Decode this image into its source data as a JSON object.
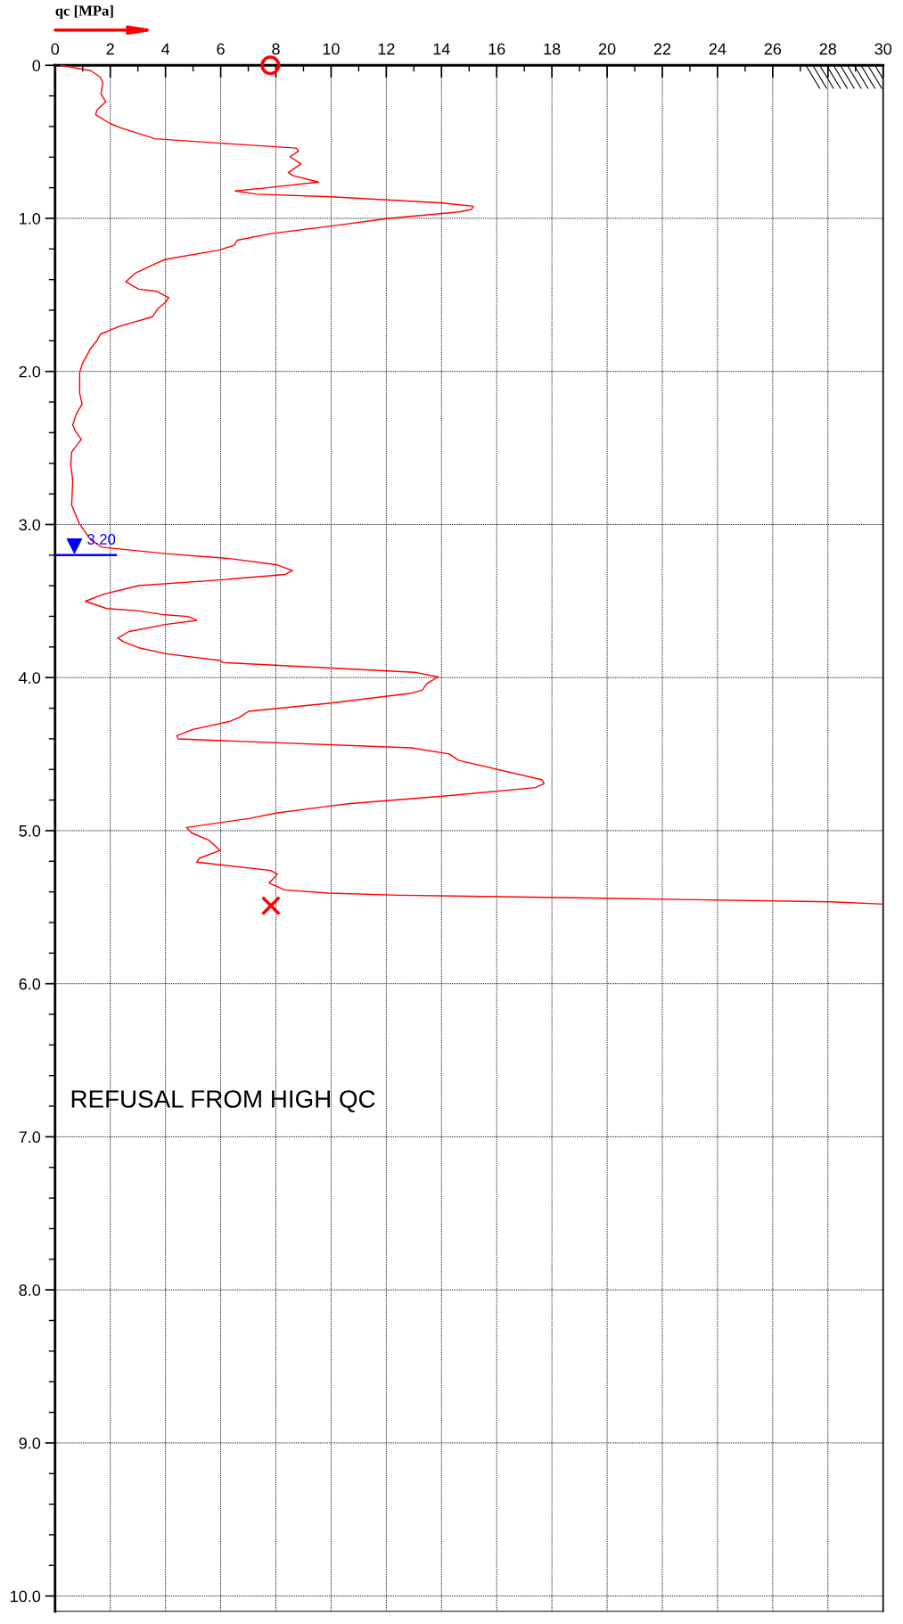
{
  "chart_data": {
    "type": "line",
    "xlabel": "qc [MPa]",
    "xlim": [
      0,
      30
    ],
    "ylim": [
      10.1,
      0
    ],
    "xticks": [
      0,
      {
        "value": 1,
        "label": null
      },
      2,
      {
        "value": 3,
        "label": null
      },
      4,
      {
        "value": 5,
        "label": null
      },
      6,
      {
        "value": 7,
        "label": null
      },
      8,
      {
        "value": 9,
        "label": null
      },
      10,
      {
        "value": 11,
        "label": null
      },
      12,
      {
        "value": 13,
        "label": null
      },
      14,
      {
        "value": 15,
        "label": null
      },
      16,
      {
        "value": 17,
        "label": null
      },
      18,
      {
        "value": 19,
        "label": null
      },
      20,
      {
        "value": 21,
        "label": null
      },
      22,
      {
        "value": 23,
        "label": null
      },
      24,
      {
        "value": 25,
        "label": null
      },
      26,
      {
        "value": 27,
        "label": null
      },
      28,
      {
        "value": 29,
        "label": null
      },
      30
    ],
    "yticks": [
      0,
      {
        "value": 0.2,
        "label": null
      },
      {
        "value": 0.4,
        "label": null
      },
      {
        "value": 0.6,
        "label": null
      },
      {
        "value": 0.8,
        "label": null
      },
      {
        "value": 1,
        "label": "1.0"
      },
      {
        "value": 1.2,
        "label": null
      },
      {
        "value": 1.4,
        "label": null
      },
      {
        "value": 1.6,
        "label": null
      },
      {
        "value": 1.8,
        "label": null
      },
      {
        "value": 2,
        "label": "2.0"
      },
      {
        "value": 2.2,
        "label": null
      },
      {
        "value": 2.4,
        "label": null
      },
      {
        "value": 2.6,
        "label": null
      },
      {
        "value": 2.8,
        "label": null
      },
      {
        "value": 3,
        "label": "3.0"
      },
      {
        "value": 3.2,
        "label": null
      },
      {
        "value": 3.4,
        "label": null
      },
      {
        "value": 3.6,
        "label": null
      },
      {
        "value": 3.8,
        "label": null
      },
      {
        "value": 4,
        "label": "4.0"
      },
      {
        "value": 4.2,
        "label": null
      },
      {
        "value": 4.4,
        "label": null
      },
      {
        "value": 4.6,
        "label": null
      },
      {
        "value": 4.8,
        "label": null
      },
      {
        "value": 5,
        "label": "5.0"
      },
      {
        "value": 5.2,
        "label": null
      },
      {
        "value": 5.4,
        "label": null
      },
      {
        "value": 5.6,
        "label": null
      },
      {
        "value": 5.8,
        "label": null
      },
      {
        "value": 6,
        "label": "6.0"
      },
      {
        "value": 6.2,
        "label": null
      },
      {
        "value": 6.4,
        "label": null
      },
      {
        "value": 6.6,
        "label": null
      },
      {
        "value": 6.8,
        "label": null
      },
      {
        "value": 7,
        "label": "7.0"
      },
      {
        "value": 7.2,
        "label": null
      },
      {
        "value": 7.4,
        "label": null
      },
      {
        "value": 7.6,
        "label": null
      },
      {
        "value": 7.8,
        "label": null
      },
      {
        "value": 8,
        "label": "8.0"
      },
      {
        "value": 8.2,
        "label": null
      },
      {
        "value": 8.4,
        "label": null
      },
      {
        "value": 8.6,
        "label": null
      },
      {
        "value": 8.8,
        "label": null
      },
      {
        "value": 9,
        "label": "9.0"
      },
      {
        "value": 9.2,
        "label": null
      },
      {
        "value": 9.4,
        "label": null
      },
      {
        "value": 9.6,
        "label": null
      },
      {
        "value": 9.8,
        "label": null
      },
      {
        "value": 10,
        "label": "10.0"
      }
    ],
    "grid": true,
    "line_style": "solid",
    "marker": "none",
    "series": [
      {
        "color": "#ff0000",
        "x": [
          0.2,
          1.29,
          1.64,
          1.73,
          1.66,
          1.84,
          1.52,
          1.47,
          1.99,
          2.39,
          3.43,
          3.6,
          5.97,
          8.74,
          8.82,
          8.51,
          8.91,
          8.45,
          8.63,
          9.55,
          7.7,
          6.52,
          7.3,
          10.0,
          14.05,
          15.15,
          15.09,
          14.63,
          12.09,
          10.0,
          7.82,
          6.6,
          6.49,
          5.97,
          4.0,
          3.72,
          2.91,
          2.56,
          3.03,
          3.66,
          4.12,
          4.0,
          3.72,
          3.54,
          2.33,
          1.64,
          1.52,
          1.29,
          1.0,
          0.89,
          0.89,
          0.98,
          0.77,
          0.64,
          0.74,
          0.95,
          0.6,
          0.57,
          0.64,
          0.6,
          0.89,
          1.29,
          1.7,
          4.0,
          6.32,
          8.05,
          8.6,
          8.34,
          5.97,
          3.03,
          1.76,
          1.1,
          1.87,
          2.97,
          3.89,
          4.82,
          5.13,
          4.0,
          2.68,
          2.27,
          2.49,
          3.03,
          4.0,
          5.97,
          6.09,
          10.0,
          13.01,
          13.88,
          13.48,
          13.3,
          12.84,
          10.0,
          7.01,
          6.66,
          6.32,
          4.99,
          4.41,
          4.47,
          12.9,
          14.28,
          14.63,
          17.63,
          17.72,
          17.4,
          14.05,
          10.7,
          10.0,
          8.05,
          7.01,
          4.76,
          4.95,
          5.57,
          5.97,
          5.22,
          5.13,
          7.82,
          8.05,
          7.76,
          8.32,
          9.9,
          12.47,
          19.38,
          28.09,
          30
        ],
        "values": [
          0,
          0.035,
          0.077,
          0.114,
          0.187,
          0.239,
          0.291,
          0.322,
          0.38,
          0.41,
          0.468,
          0.48,
          0.509,
          0.541,
          0.561,
          0.597,
          0.644,
          0.701,
          0.721,
          0.763,
          0.8,
          0.821,
          0.842,
          0.859,
          0.9,
          0.921,
          0.942,
          0.958,
          1.0,
          1.05,
          1.1,
          1.143,
          1.175,
          1.206,
          1.268,
          1.289,
          1.358,
          1.414,
          1.462,
          1.476,
          1.518,
          1.549,
          1.59,
          1.642,
          1.705,
          1.757,
          1.798,
          1.85,
          1.944,
          2.006,
          2.141,
          2.214,
          2.277,
          2.349,
          2.391,
          2.443,
          2.526,
          2.609,
          2.713,
          2.873,
          2.998,
          3.1,
          3.148,
          3.19,
          3.222,
          3.264,
          3.301,
          3.326,
          3.362,
          3.399,
          3.455,
          3.501,
          3.549,
          3.563,
          3.588,
          3.601,
          3.626,
          3.653,
          3.699,
          3.742,
          3.767,
          3.805,
          3.844,
          3.888,
          3.902,
          3.938,
          3.965,
          3.996,
          4.037,
          4.083,
          4.104,
          4.166,
          4.22,
          4.262,
          4.287,
          4.339,
          4.38,
          4.401,
          4.459,
          4.499,
          4.541,
          4.667,
          4.692,
          4.719,
          4.775,
          4.823,
          4.838,
          4.884,
          4.921,
          4.979,
          5.015,
          5.062,
          5.129,
          5.181,
          5.206,
          5.26,
          5.285,
          5.343,
          5.387,
          5.408,
          5.422,
          5.44,
          5.465,
          5.48
        ]
      },
      {
        "type": "scatter",
        "color": "#ff0000",
        "marker": "circle",
        "x": [
          7.8
        ],
        "values": [
          0
        ]
      },
      {
        "type": "scatter",
        "color": "#ff0000",
        "marker": "cross",
        "x": [
          7.82
        ],
        "values": [
          5.49
        ]
      }
    ],
    "ref_lines": [
      {
        "axis": "y",
        "value": 3.2,
        "label": "3.20",
        "color": "#0000ff",
        "line_style": "solid"
      }
    ],
    "annotations": [
      "REFUSAL FROM HIGH QC"
    ]
  }
}
